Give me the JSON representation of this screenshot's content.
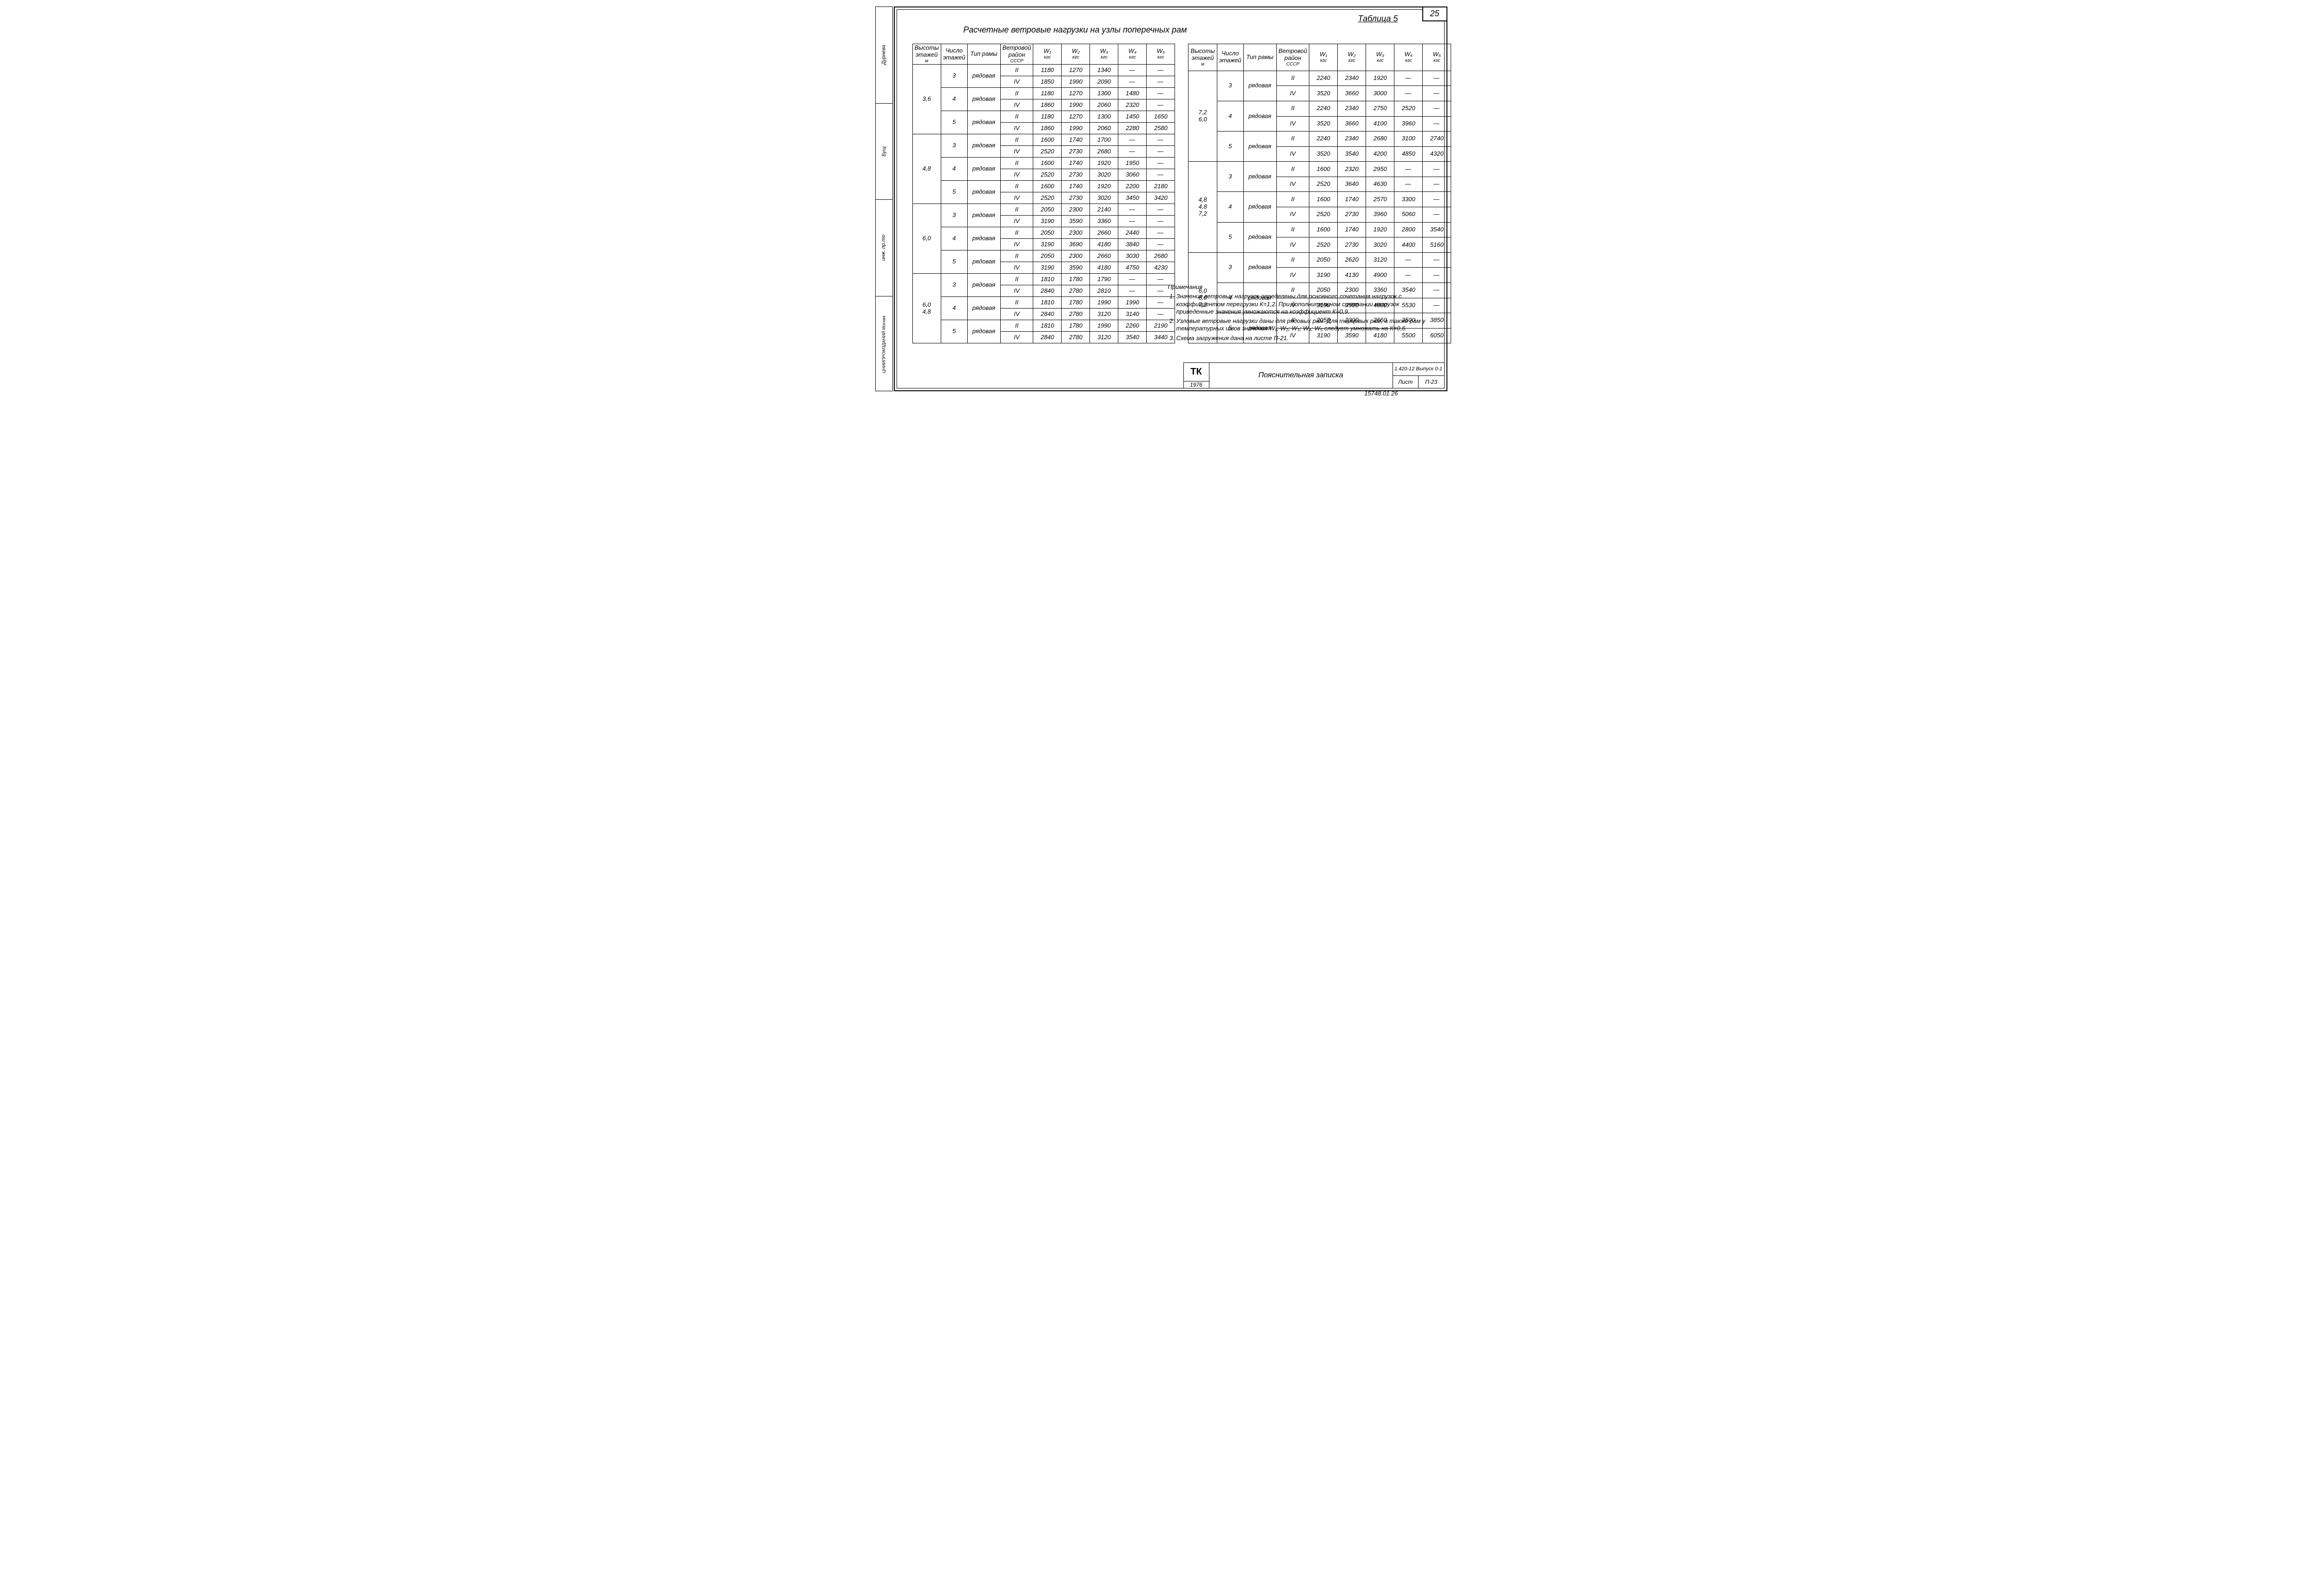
{
  "page_number": "25",
  "table_label": "Таблица 5",
  "title": "Расчетные ветровые нагрузки на узлы поперечных рам",
  "dash": "—",
  "headers": {
    "col_height": "Высоты этажей",
    "col_height_unit": "м",
    "col_floors": "Число этажей",
    "col_type": "Тип рамы",
    "col_region": "Ветровой район",
    "col_region_sub": "СССР",
    "w1": "W₁",
    "w2": "W₂",
    "w3": "W₃",
    "w4": "W₄",
    "w5": "W₅",
    "unit_kgs": "кгс",
    "unit_krs": "кгс"
  },
  "frame_type": "рядовая",
  "regions": [
    "II",
    "IV"
  ],
  "left_groups": [
    {
      "height": "3,6",
      "blocks": [
        {
          "floors": "3",
          "rows": [
            [
              "1180",
              "1270",
              "1340",
              "—",
              "—"
            ],
            [
              "1850",
              "1990",
              "2090",
              "—",
              "—"
            ]
          ]
        },
        {
          "floors": "4",
          "rows": [
            [
              "1180",
              "1270",
              "1300",
              "1480",
              "—"
            ],
            [
              "1860",
              "1990",
              "2060",
              "2320",
              "—"
            ]
          ]
        },
        {
          "floors": "5",
          "rows": [
            [
              "1180",
              "1270",
              "1300",
              "1450",
              "1650"
            ],
            [
              "1860",
              "1990",
              "2060",
              "2280",
              "2580"
            ]
          ]
        }
      ]
    },
    {
      "height": "4,8",
      "blocks": [
        {
          "floors": "3",
          "rows": [
            [
              "1600",
              "1740",
              "1700",
              "—",
              "—"
            ],
            [
              "2520",
              "2730",
              "2680",
              "—",
              "—"
            ]
          ]
        },
        {
          "floors": "4",
          "rows": [
            [
              "1600",
              "1740",
              "1920",
              "1950",
              "—"
            ],
            [
              "2520",
              "2730",
              "3020",
              "3060",
              "—"
            ]
          ]
        },
        {
          "floors": "5",
          "rows": [
            [
              "1600",
              "1740",
              "1920",
              "2200",
              "2180"
            ],
            [
              "2520",
              "2730",
              "3020",
              "3450",
              "3420"
            ]
          ]
        }
      ]
    },
    {
      "height": "6,0",
      "blocks": [
        {
          "floors": "3",
          "rows": [
            [
              "2050",
              "2300",
              "2140",
              "—",
              "—"
            ],
            [
              "3190",
              "3590",
              "3360",
              "—",
              "—"
            ]
          ]
        },
        {
          "floors": "4",
          "rows": [
            [
              "2050",
              "2300",
              "2660",
              "2440",
              "—"
            ],
            [
              "3190",
              "3690",
              "4180",
              "3840",
              "—"
            ]
          ]
        },
        {
          "floors": "5",
          "rows": [
            [
              "2050",
              "2300",
              "2660",
              "3030",
              "2680"
            ],
            [
              "3190",
              "3590",
              "4180",
              "4750",
              "4230"
            ]
          ]
        }
      ]
    },
    {
      "height": "6,0\n4,8",
      "blocks": [
        {
          "floors": "3",
          "rows": [
            [
              "1810",
              "1780",
              "1790",
              "—",
              "—"
            ],
            [
              "2840",
              "2780",
              "2810",
              "—",
              "—"
            ]
          ]
        },
        {
          "floors": "4",
          "rows": [
            [
              "1810",
              "1780",
              "1990",
              "1990",
              "—"
            ],
            [
              "2840",
              "2780",
              "3120",
              "3140",
              "—"
            ]
          ]
        },
        {
          "floors": "5",
          "rows": [
            [
              "1810",
              "1780",
              "1990",
              "2260",
              "2190"
            ],
            [
              "2840",
              "2780",
              "3120",
              "3540",
              "3440"
            ]
          ]
        }
      ]
    }
  ],
  "right_groups": [
    {
      "height": "7,2\n6,0",
      "blocks": [
        {
          "floors": "3",
          "rows": [
            [
              "2240",
              "2340",
              "1920",
              "—",
              "—"
            ],
            [
              "3520",
              "3660",
              "3000",
              "—",
              "—"
            ]
          ]
        },
        {
          "floors": "4",
          "rows": [
            [
              "2240",
              "2340",
              "2750",
              "2520",
              "—"
            ],
            [
              "3520",
              "3660",
              "4100",
              "3960",
              "—"
            ]
          ]
        },
        {
          "floors": "5",
          "rows": [
            [
              "2240",
              "2340",
              "2680",
              "3100",
              "2740"
            ],
            [
              "3520",
              "3540",
              "4200",
              "4850",
              "4320"
            ]
          ]
        }
      ]
    },
    {
      "height": "4,8\n4,8\n7,2",
      "blocks": [
        {
          "floors": "3",
          "rows": [
            [
              "1600",
              "2320",
              "2950",
              "—",
              "—"
            ],
            [
              "2520",
              "3640",
              "4630",
              "—",
              "—"
            ]
          ]
        },
        {
          "floors": "4",
          "rows": [
            [
              "1600",
              "1740",
              "2570",
              "3300",
              "—"
            ],
            [
              "2520",
              "2730",
              "3960",
              "5060",
              "—"
            ]
          ]
        },
        {
          "floors": "5",
          "rows": [
            [
              "1600",
              "1740",
              "1920",
              "2800",
              "3540"
            ],
            [
              "2520",
              "2730",
              "3020",
              "4400",
              "5160"
            ]
          ]
        }
      ]
    },
    {
      "height": "6,0\n6,0\n7,2",
      "blocks": [
        {
          "floors": "3",
          "rows": [
            [
              "2050",
              "2620",
              "3120",
              "—",
              "—"
            ],
            [
              "3190",
              "4130",
              "4900",
              "—",
              "—"
            ]
          ]
        },
        {
          "floors": "4",
          "rows": [
            [
              "2050",
              "2300",
              "3360",
              "3540",
              "—"
            ],
            [
              "3190",
              "3590",
              "4800",
              "5530",
              "—"
            ]
          ]
        },
        {
          "floors": "5",
          "rows": [
            [
              "2050",
              "2300",
              "2660",
              "3500",
              "3850"
            ],
            [
              "3190",
              "3590",
              "4180",
              "5500",
              "6050"
            ]
          ]
        }
      ]
    }
  ],
  "notes": {
    "heading": "Примечания",
    "items": [
      "Значения ветровых нагрузок определены для основного сочетания нагрузок с коэффициентом перегрузки К=1,2. При дополнительном сочетании нагрузок приведенные значения умножаются на коэффициент К=0,9.",
      "Узловые ветровые нагрузки даны для рядовых рам. Для торцовых рам, а также рам у температурных швов значения W₁; W₂; W₃; W₄; W₅ следует умножать на К=0,6.",
      "Схема загружения дана на листе П-21."
    ]
  },
  "binding": {
    "s1": "Дурнева",
    "s2": "Бущ",
    "s3": "инж. пр.то",
    "s4": "ЦНИИПРОМЗДАНИЙ\nМосква"
  },
  "title_block": {
    "tk": "ТК",
    "year": "1976",
    "mid": "Пояснительная записка",
    "code": "1.420-12\nВыпуск 0-1",
    "sheet_label": "Лист",
    "sheet_no": "П-23"
  },
  "footer": "15748.01   26"
}
